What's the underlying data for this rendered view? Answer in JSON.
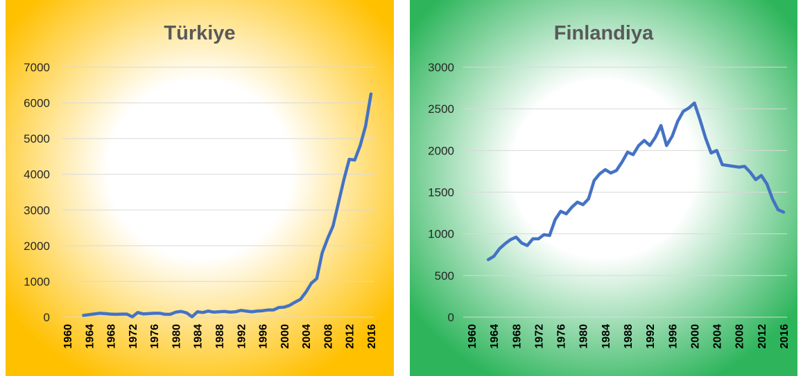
{
  "chart_data": [
    {
      "type": "line",
      "title": "Türkiye",
      "color": "#4472c4",
      "background_color": "#ffc000",
      "grid": true,
      "x": [
        1963,
        1964,
        1965,
        1966,
        1967,
        1968,
        1969,
        1970,
        1971,
        1972,
        1973,
        1974,
        1975,
        1976,
        1977,
        1978,
        1979,
        1980,
        1981,
        1982,
        1983,
        1984,
        1985,
        1986,
        1987,
        1988,
        1989,
        1990,
        1991,
        1992,
        1993,
        1994,
        1995,
        1996,
        1997,
        1998,
        1999,
        2000,
        2001,
        2002,
        2003,
        2004,
        2005,
        2006,
        2007,
        2008,
        2009,
        2010,
        2011,
        2012,
        2013,
        2014,
        2015,
        2016
      ],
      "values": [
        50,
        70,
        90,
        110,
        100,
        85,
        80,
        85,
        85,
        10,
        130,
        90,
        100,
        110,
        110,
        80,
        80,
        140,
        160,
        120,
        10,
        150,
        130,
        170,
        140,
        150,
        160,
        140,
        150,
        190,
        170,
        150,
        170,
        180,
        200,
        200,
        270,
        280,
        330,
        420,
        500,
        700,
        950,
        1080,
        1800,
        2200,
        2550,
        3200,
        3850,
        4420,
        4400,
        4800,
        5350,
        6250
      ],
      "xlim": [
        1960,
        2016
      ],
      "xticks": [
        1960,
        1964,
        1968,
        1972,
        1976,
        1980,
        1984,
        1988,
        1992,
        1996,
        2000,
        2004,
        2008,
        2012,
        2016
      ],
      "ylim": [
        0,
        7000
      ],
      "yticks": [
        0,
        1000,
        2000,
        3000,
        4000,
        5000,
        6000,
        7000
      ]
    },
    {
      "type": "line",
      "title": "Finlandiya",
      "color": "#4472c4",
      "background_color": "#2eb55c",
      "grid": true,
      "x": [
        1963,
        1964,
        1965,
        1966,
        1967,
        1968,
        1969,
        1970,
        1971,
        1972,
        1973,
        1974,
        1975,
        1976,
        1977,
        1978,
        1979,
        1980,
        1981,
        1982,
        1983,
        1984,
        1985,
        1986,
        1987,
        1988,
        1989,
        1990,
        1991,
        1992,
        1993,
        1994,
        1995,
        1996,
        1997,
        1998,
        1999,
        2000,
        2001,
        2002,
        2003,
        2004,
        2005,
        2006,
        2007,
        2008,
        2009,
        2010,
        2011,
        2012,
        2013,
        2014,
        2015,
        2016
      ],
      "values": [
        690,
        730,
        820,
        880,
        930,
        960,
        890,
        860,
        940,
        940,
        990,
        980,
        1170,
        1270,
        1240,
        1320,
        1380,
        1350,
        1420,
        1640,
        1720,
        1770,
        1730,
        1760,
        1860,
        1980,
        1950,
        2060,
        2120,
        2060,
        2160,
        2300,
        2060,
        2170,
        2350,
        2470,
        2510,
        2570,
        2370,
        2150,
        1970,
        2000,
        1830,
        1820,
        1810,
        1800,
        1810,
        1740,
        1650,
        1700,
        1600,
        1420,
        1290,
        1260
      ],
      "xlim": [
        1960,
        2016
      ],
      "xticks": [
        1960,
        1964,
        1968,
        1972,
        1976,
        1980,
        1984,
        1988,
        1992,
        1996,
        2000,
        2004,
        2008,
        2012,
        2016
      ],
      "ylim": [
        0,
        3000
      ],
      "yticks": [
        0,
        500,
        1000,
        1500,
        2000,
        2500,
        3000
      ]
    }
  ]
}
